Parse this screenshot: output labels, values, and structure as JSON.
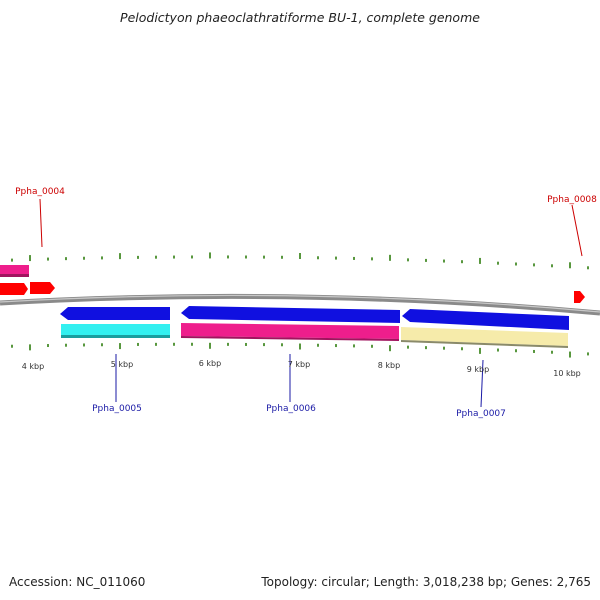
{
  "title": "Pelodictyon phaeoclathratiforme BU-1, complete genome",
  "footer": {
    "accession": "Accession: NC_011060",
    "summary": "Topology: circular; Length: 3,018,238 bp; Genes: 2,765"
  },
  "kbp_labels": [
    "4 kbp",
    "5 kbp",
    "6 kbp",
    "7 kbp",
    "8 kbp",
    "9 kbp",
    "10 kbp"
  ],
  "gene_labels": [
    {
      "id": "Ppha_0004",
      "strand": "forward"
    },
    {
      "id": "Ppha_0005",
      "strand": "reverse"
    },
    {
      "id": "Ppha_0006",
      "strand": "reverse"
    },
    {
      "id": "Ppha_0007",
      "strand": "reverse"
    },
    {
      "id": "Ppha_0008",
      "strand": "forward"
    }
  ],
  "colors": {
    "backbone": "#8a8a8a",
    "tick": "#2e7d0e",
    "forward_label": "#cc0000",
    "reverse_label": "#1a1aa6",
    "forward_gene": "#ff0000",
    "reverse_gene": "#1010e0",
    "magenta": "#ee1e8c",
    "cyan": "#33f0f0",
    "khaki": "#f6ebaa"
  }
}
